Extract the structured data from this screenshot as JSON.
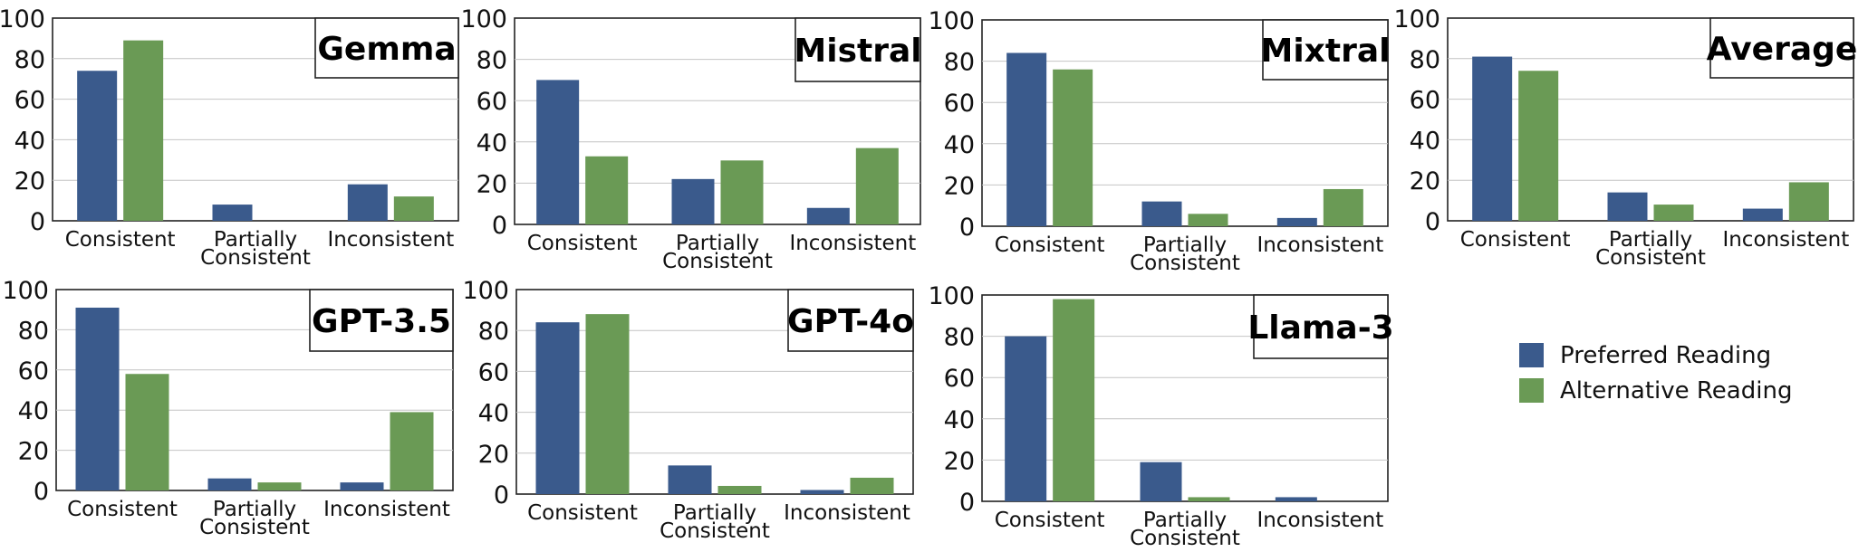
{
  "chart_data": {
    "type": "bar",
    "categories": [
      [
        "Consistent"
      ],
      [
        "Partially",
        "Consistent"
      ],
      [
        "Inconsistent"
      ]
    ],
    "ylim": [
      0,
      100
    ],
    "yticks": [
      0,
      20,
      40,
      60,
      80,
      100
    ],
    "grid": true,
    "colors": {
      "preferred": "#3a5a8c",
      "alternative": "#6a9a55"
    },
    "legend": {
      "placement": "right",
      "entries": [
        "Preferred Reading",
        "Alternative Reading"
      ]
    },
    "panels": [
      {
        "title": "Gemma",
        "series": [
          {
            "values": [
              74,
              8,
              18
            ]
          },
          {
            "values": [
              89,
              0,
              12
            ]
          }
        ]
      },
      {
        "title": "Mistral",
        "series": [
          {
            "values": [
              70,
              22,
              8
            ]
          },
          {
            "values": [
              33,
              31,
              37
            ]
          }
        ]
      },
      {
        "title": "Mixtral",
        "series": [
          {
            "values": [
              84,
              12,
              4
            ]
          },
          {
            "values": [
              76,
              6,
              18
            ]
          }
        ]
      },
      {
        "title": "Average",
        "series": [
          {
            "values": [
              81,
              14,
              6
            ]
          },
          {
            "values": [
              74,
              8,
              19
            ]
          }
        ]
      },
      {
        "title": "GPT-3.5",
        "series": [
          {
            "values": [
              91,
              6,
              4
            ]
          },
          {
            "values": [
              58,
              4,
              39
            ]
          }
        ]
      },
      {
        "title": "GPT-4o",
        "series": [
          {
            "values": [
              84,
              14,
              2
            ]
          },
          {
            "values": [
              88,
              4,
              8
            ]
          }
        ]
      },
      {
        "title": "Llama-3",
        "series": [
          {
            "values": [
              80,
              19,
              2
            ]
          },
          {
            "values": [
              98,
              2,
              0
            ]
          }
        ]
      }
    ]
  }
}
